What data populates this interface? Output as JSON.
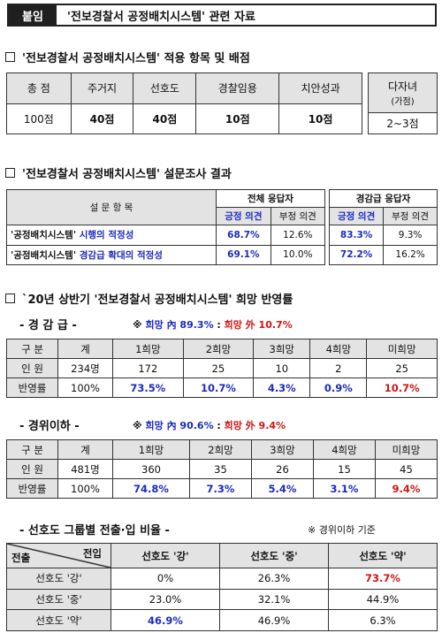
{
  "header": {
    "tag": "붙임",
    "title": "'전보경찰서 공정배치시스템' 관련 자료"
  },
  "sec1": {
    "title": "'전보경찰서 공정배치시스템' 적용 항목 및 배점",
    "headers": [
      "총 점",
      "주거지",
      "선호도",
      "경찰임용",
      "치안성과"
    ],
    "values": [
      "100점",
      "40점",
      "40점",
      "10점",
      "10점"
    ],
    "extra_header_main": "다자녀",
    "extra_header_sub": "(가점)",
    "extra_value": "2~3점"
  },
  "sec2": {
    "title": "'전보경찰서 공정배치시스템' 설문조사 결과",
    "item_header": "설 문 항 목",
    "group1": "전체 응답자",
    "group2": "경감급 응답자",
    "pos": "긍정 의견",
    "neg": "부정 의견",
    "rows": [
      {
        "q_a": "'공정배치시스템' ",
        "q_b": "시행의 적정성",
        "g1p": "68.7%",
        "g1n": "12.6%",
        "g2p": "83.3%",
        "g2n": "9.3%"
      },
      {
        "q_a": "'공정배치시스템' ",
        "q_b": "경감급 확대의 적정성",
        "g1p": "69.1%",
        "g1n": "10.0%",
        "g2p": "72.2%",
        "g2n": "16.2%"
      }
    ]
  },
  "sec3": {
    "title": "`20년 상반기 '전보경찰서 공정배치시스템' 희망 반영률",
    "headers": [
      "구 분",
      "계",
      "1희망",
      "2희망",
      "3희망",
      "4희망",
      "미희망"
    ],
    "g1": {
      "label": "- 경 감 급 -",
      "note_prefix": "※ ",
      "note_in": "희망 內 89.3%",
      "note_sep": " : ",
      "note_out": "희망 外 10.7%",
      "row1_label": "인 원",
      "row1": [
        "234명",
        "172",
        "25",
        "10",
        "2",
        "25"
      ],
      "row2_label": "반영률",
      "row2": [
        "100%",
        "73.5%",
        "10.7%",
        "4.3%",
        "0.9%",
        "10.7%"
      ]
    },
    "g2": {
      "label": "- 경위이하 -",
      "note_prefix": "※ ",
      "note_in": "희망 內 90.6%",
      "note_sep": " : ",
      "note_out": "희망 外 9.4%",
      "row1_label": "인 원",
      "row1": [
        "481명",
        "360",
        "35",
        "26",
        "15",
        "45"
      ],
      "row2_label": "반영률",
      "row2": [
        "100%",
        "74.8%",
        "7.3%",
        "5.4%",
        "3.1%",
        "9.4%"
      ]
    }
  },
  "sec4": {
    "label": "- 선호도 그룹별 전출·입 비율 -",
    "note": "※ 경위이하 기준",
    "corner_in": "전입",
    "corner_out": "전출",
    "headers": [
      "선호도 '강'",
      "선호도 '중'",
      "선호도 '약'"
    ],
    "rows": [
      {
        "label": "선호도 '강'",
        "values": [
          "0%",
          "26.3%",
          "73.7%"
        ]
      },
      {
        "label": "선호도 '중'",
        "values": [
          "23.0%",
          "32.1%",
          "44.9%"
        ]
      },
      {
        "label": "선호도 '약'",
        "values": [
          "46.9%",
          "46.9%",
          "6.3%"
        ]
      }
    ]
  }
}
